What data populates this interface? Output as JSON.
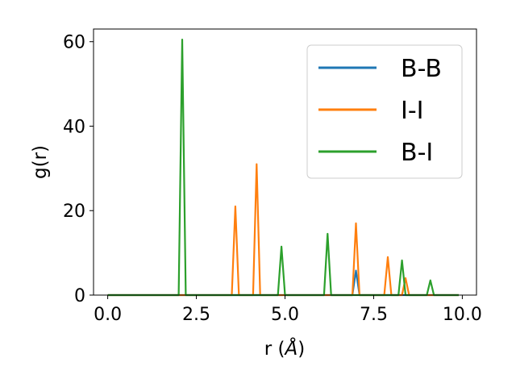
{
  "chart_data": {
    "type": "line",
    "xlabel": "r (",
    "xlabel_italic": "Å",
    "xlabel_end": ")",
    "ylabel": "g(r)",
    "xlim": [
      -0.4,
      10.4
    ],
    "ylim": [
      0,
      63
    ],
    "x_ticks": [
      0.0,
      2.5,
      5.0,
      7.5,
      10.0
    ],
    "x_tick_labels": [
      "0.0",
      "2.5",
      "5.0",
      "7.5",
      "10.0"
    ],
    "y_ticks": [
      0,
      20,
      40,
      60
    ],
    "y_tick_labels": [
      "0",
      "20",
      "40",
      "60"
    ],
    "grid": false,
    "legend_position": "top-right",
    "series": [
      {
        "name": "B-B",
        "color": "#1f77b4",
        "points": [
          [
            0.0,
            0
          ],
          [
            6.9,
            0
          ],
          [
            7.0,
            5.8
          ],
          [
            7.1,
            0
          ],
          [
            9.9,
            0
          ]
        ]
      },
      {
        "name": "I-I",
        "color": "#ff7f0e",
        "points": [
          [
            0.0,
            0
          ],
          [
            3.5,
            0
          ],
          [
            3.6,
            21
          ],
          [
            3.7,
            0
          ],
          [
            4.1,
            0
          ],
          [
            4.2,
            31
          ],
          [
            4.3,
            0
          ],
          [
            6.9,
            0
          ],
          [
            7.0,
            17
          ],
          [
            7.1,
            0
          ],
          [
            7.8,
            0
          ],
          [
            7.9,
            9
          ],
          [
            8.0,
            0
          ],
          [
            8.3,
            0
          ],
          [
            8.4,
            4
          ],
          [
            8.5,
            0
          ],
          [
            9.9,
            0
          ]
        ]
      },
      {
        "name": "B-I",
        "color": "#2ca02c",
        "points": [
          [
            0.0,
            0
          ],
          [
            2.0,
            0
          ],
          [
            2.1,
            60.5
          ],
          [
            2.2,
            0
          ],
          [
            4.8,
            0
          ],
          [
            4.9,
            11.5
          ],
          [
            5.0,
            0
          ],
          [
            6.1,
            0
          ],
          [
            6.2,
            14.5
          ],
          [
            6.3,
            0
          ],
          [
            8.2,
            0
          ],
          [
            8.3,
            8.2
          ],
          [
            8.4,
            0
          ],
          [
            9.0,
            0
          ],
          [
            9.1,
            3.5
          ],
          [
            9.2,
            0
          ],
          [
            9.9,
            0
          ]
        ]
      }
    ]
  }
}
